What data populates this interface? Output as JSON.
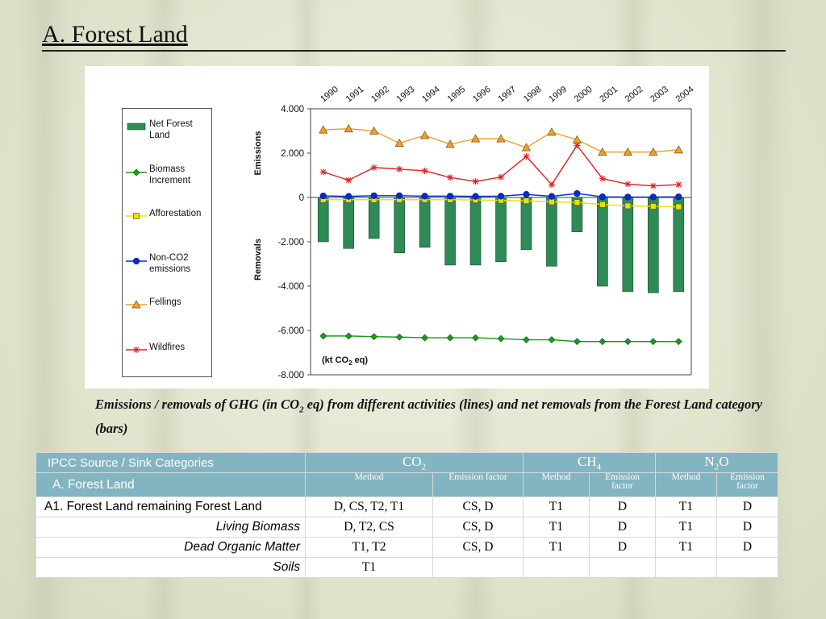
{
  "slide": {
    "title": "A. Forest Land",
    "caption_pre": "Emissions / removals of GHG (in CO",
    "caption_sub": "2",
    "caption_post": " eq) from different activities (lines) and net removals from the Forest Land category (bars)"
  },
  "chart_data": {
    "type": "bar",
    "x": [
      "1990",
      "1991",
      "1992",
      "1993",
      "1994",
      "1995",
      "1996",
      "1997",
      "1998",
      "1999",
      "2000",
      "2001",
      "2002",
      "2003",
      "2004"
    ],
    "ylim": [
      -8000,
      4000
    ],
    "yticks": [
      4000,
      2000,
      0,
      -2000,
      -4000,
      -6000,
      -8000
    ],
    "ytick_labels": [
      "4.000",
      "2.000",
      "0",
      "-2.000",
      "-4.000",
      "-6.000",
      "-8.000"
    ],
    "ylabel_top": "Emissions",
    "ylabel_bottom": "Removals",
    "unit_label_pre": "(kt CO",
    "unit_label_sub": "2",
    "unit_label_post": " eq)",
    "legend_position": "left",
    "grid": false,
    "series": [
      {
        "name": "Net Forest Land",
        "kind": "bar",
        "color": "#2e8b57",
        "values": [
          -2000,
          -2300,
          -1850,
          -2500,
          -2250,
          -3050,
          -3050,
          -2900,
          -2350,
          -3100,
          -1550,
          -4000,
          -4250,
          -4300,
          -4250
        ]
      },
      {
        "name": "Biomass Increment",
        "kind": "line",
        "color": "#1a9a1a",
        "marker": "diamond",
        "values": [
          -6250,
          -6250,
          -6280,
          -6300,
          -6330,
          -6330,
          -6330,
          -6370,
          -6420,
          -6420,
          -6500,
          -6500,
          -6500,
          -6500,
          -6500
        ]
      },
      {
        "name": "Afforestation",
        "kind": "line",
        "color": "#f0e000",
        "marker": "square",
        "values": [
          -100,
          -100,
          -100,
          -100,
          -100,
          -100,
          -110,
          -130,
          -150,
          -200,
          -220,
          -320,
          -380,
          -400,
          -420
        ]
      },
      {
        "name": "Non-CO2 emissions",
        "kind": "line",
        "color": "#0a2acc",
        "marker": "circle",
        "values": [
          70,
          50,
          80,
          80,
          60,
          60,
          50,
          60,
          140,
          50,
          180,
          30,
          20,
          20,
          30
        ]
      },
      {
        "name": "Fellings",
        "kind": "line",
        "color": "#f0a030",
        "marker": "triangle",
        "values": [
          3050,
          3100,
          3000,
          2450,
          2800,
          2400,
          2650,
          2650,
          2250,
          2950,
          2600,
          2050,
          2050,
          2050,
          2150
        ]
      },
      {
        "name": "Wildfires",
        "kind": "line",
        "color": "#e02020",
        "marker": "star",
        "values": [
          1150,
          780,
          1350,
          1280,
          1200,
          900,
          720,
          920,
          1850,
          580,
          2350,
          850,
          600,
          520,
          580
        ]
      }
    ]
  },
  "legend_labels": [
    "Net Forest\nLand",
    "Biomass\nIncrement",
    "Afforestation",
    "Non-CO2\nemissions",
    "Fellings",
    "Wildfires"
  ],
  "table": {
    "header": {
      "col0": "IPCC Source / Sink Categories",
      "col0_sub": "A. Forest Land",
      "gases": [
        {
          "pre": "CO",
          "sub": "2",
          "post": ""
        },
        {
          "pre": "CH",
          "sub": "4",
          "post": ""
        },
        {
          "pre": "N",
          "sub": "2",
          "post": "O"
        }
      ],
      "method": "Method",
      "emission_factor": "Emission factor"
    },
    "rows": [
      {
        "label": "A1.  Forest Land remaining Forest Land",
        "style": "main",
        "cells": [
          "D, CS, T2, T1",
          "CS, D",
          "T1",
          "D",
          "T1",
          "D"
        ]
      },
      {
        "label": "Living Biomass",
        "style": "sub",
        "cells": [
          "D, T2, CS",
          "CS, D",
          "T1",
          "D",
          "T1",
          "D"
        ]
      },
      {
        "label": "Dead Organic Matter",
        "style": "sub",
        "cells": [
          "T1, T2",
          "CS, D",
          "T1",
          "D",
          "T1",
          "D"
        ]
      },
      {
        "label": "Soils",
        "style": "sub",
        "cells": [
          "T1",
          "",
          "",
          "",
          "",
          ""
        ]
      }
    ]
  }
}
